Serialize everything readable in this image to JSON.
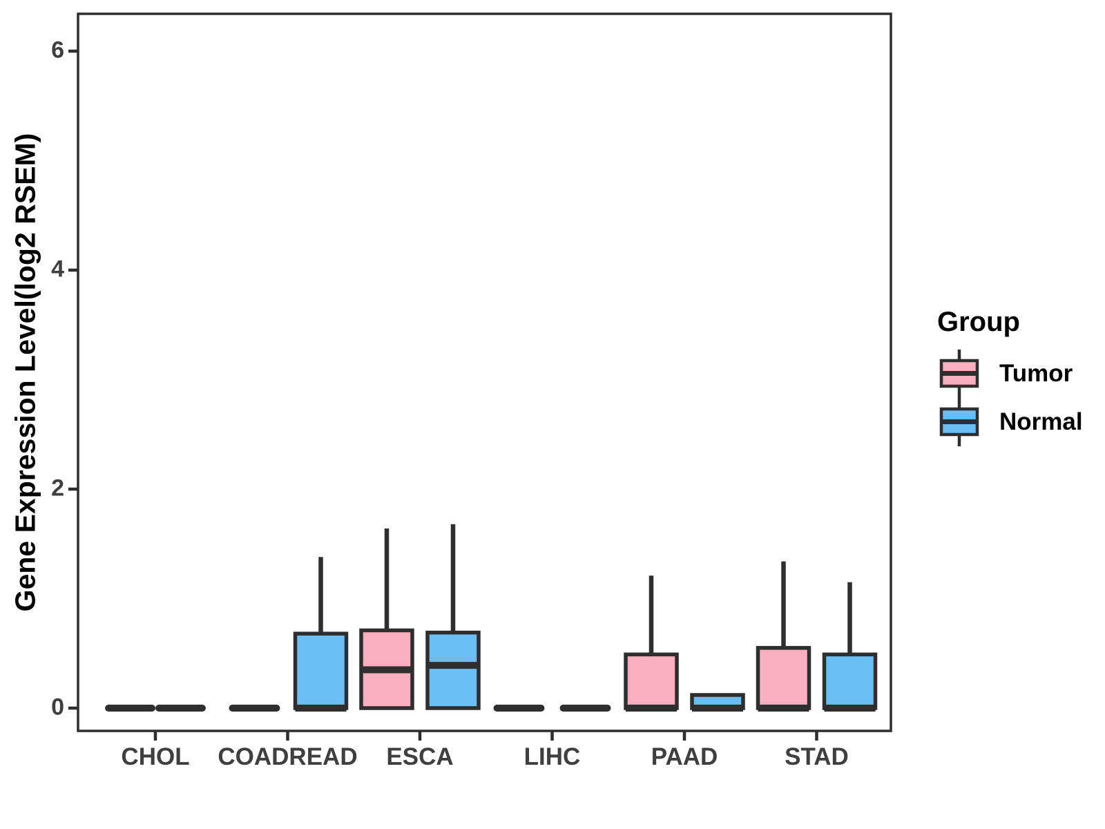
{
  "chart_data": {
    "type": "boxplot",
    "title": "",
    "xlabel": "",
    "ylabel": "Gene Expression Level(log2 RSEM)",
    "ylim": [
      -0.21,
      6.34
    ],
    "yticks": [
      0,
      2,
      4,
      6
    ],
    "ytick_labels": [
      "0",
      "2",
      "4",
      "6"
    ],
    "categories": [
      "CHOL",
      "COADREAD",
      "ESCA",
      "LIHC",
      "PAAD",
      "STAD"
    ],
    "grid": "off",
    "legend": {
      "title": "Group",
      "position": "right"
    },
    "series": [
      {
        "name": "Tumor",
        "color": "#F9AFBE",
        "boxes": [
          {
            "category": "CHOL",
            "min": 0,
            "q1": 0,
            "median": 0,
            "q3": 0,
            "max": 0
          },
          {
            "category": "COADREAD",
            "min": 0,
            "q1": 0,
            "median": 0,
            "q3": 0,
            "max": 0
          },
          {
            "category": "ESCA",
            "min": 0,
            "q1": 0,
            "median": 0.35,
            "q3": 0.71,
            "max": 1.64
          },
          {
            "category": "LIHC",
            "min": 0,
            "q1": 0,
            "median": 0,
            "q3": 0,
            "max": 0
          },
          {
            "category": "PAAD",
            "min": 0,
            "q1": 0,
            "median": 0,
            "q3": 0.49,
            "max": 1.21
          },
          {
            "category": "STAD",
            "min": 0,
            "q1": 0,
            "median": 0,
            "q3": 0.55,
            "max": 1.34
          }
        ]
      },
      {
        "name": "Normal",
        "color": "#6BBEF5",
        "boxes": [
          {
            "category": "CHOL",
            "min": 0,
            "q1": 0,
            "median": 0,
            "q3": 0,
            "max": 0
          },
          {
            "category": "COADREAD",
            "min": 0,
            "q1": 0,
            "median": 0,
            "q3": 0.68,
            "max": 1.38
          },
          {
            "category": "ESCA",
            "min": 0,
            "q1": 0,
            "median": 0.39,
            "q3": 0.69,
            "max": 1.68
          },
          {
            "category": "LIHC",
            "min": 0,
            "q1": 0,
            "median": 0,
            "q3": 0,
            "max": 0
          },
          {
            "category": "PAAD",
            "min": 0,
            "q1": 0,
            "median": 0,
            "q3": 0.12,
            "max": 0.12
          },
          {
            "category": "STAD",
            "min": 0,
            "q1": 0,
            "median": 0,
            "q3": 0.49,
            "max": 1.15
          }
        ]
      }
    ]
  },
  "colors": {
    "stroke": "#2E2E2E",
    "axis_text": "#3F3F3F",
    "title_text": "#000000",
    "background": "#FFFFFF"
  }
}
